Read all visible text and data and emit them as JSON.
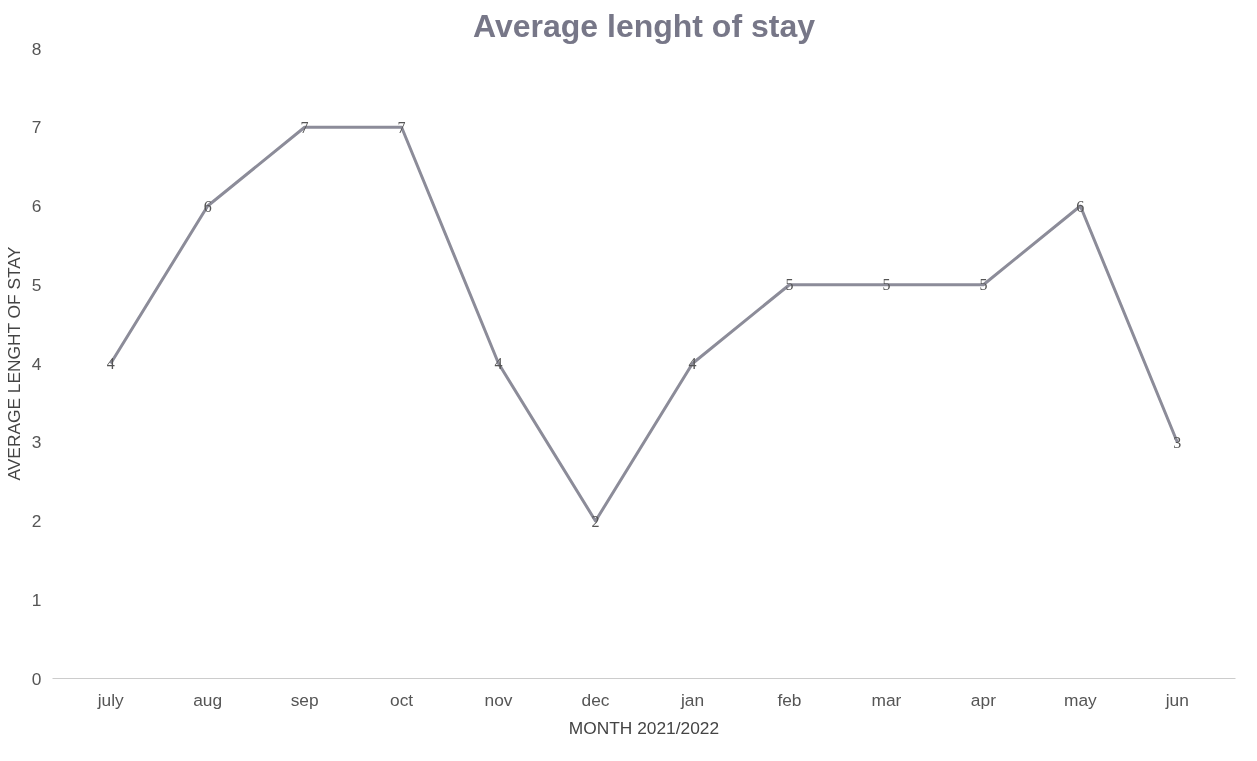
{
  "chart_data": {
    "type": "line",
    "title": "Average lenght of stay",
    "xlabel": "MONTH 2021/2022",
    "ylabel": "AVERAGE LENGHT OF STAY",
    "categories": [
      "july",
      "aug",
      "sep",
      "oct",
      "nov",
      "dec",
      "jan",
      "feb",
      "mar",
      "apr",
      "may",
      "jun"
    ],
    "series": [
      {
        "color": "#8c8c99",
        "values": [
          4,
          6,
          7,
          7,
          4,
          2,
          4,
          5,
          5,
          5,
          6,
          3
        ]
      }
    ],
    "ylim": [
      0,
      8
    ],
    "yticks": [
      0,
      1,
      2,
      3,
      4,
      5,
      6,
      7,
      8
    ],
    "data_labels": true,
    "marker": "none",
    "grid": false,
    "line_style": "solid"
  }
}
